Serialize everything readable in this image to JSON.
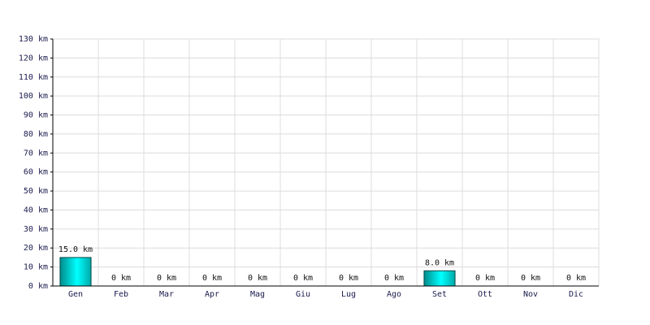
{
  "chart_data": {
    "type": "bar",
    "categories": [
      "Gen",
      "Feb",
      "Mar",
      "Apr",
      "Mag",
      "Giu",
      "Lug",
      "Ago",
      "Set",
      "Ott",
      "Nov",
      "Dic"
    ],
    "values": [
      15,
      0,
      0,
      0,
      0,
      0,
      0,
      0,
      8,
      0,
      0,
      0
    ],
    "value_labels": [
      "15.0 km",
      "0 km",
      "0 km",
      "0 km",
      "0 km",
      "0 km",
      "0 km",
      "0 km",
      "8.0 km",
      "0 km",
      "0 km",
      "0 km"
    ],
    "color": "#00d8d8",
    "ylim": [
      0,
      130
    ],
    "yticks": [
      {
        "value": 0,
        "label": "0 km"
      },
      {
        "value": 10,
        "label": "10 km"
      },
      {
        "value": 20,
        "label": "20 km"
      },
      {
        "value": 30,
        "label": "30 km"
      },
      {
        "value": 40,
        "label": "40 km"
      },
      {
        "value": 50,
        "label": "50 km"
      },
      {
        "value": 60,
        "label": "60 km"
      },
      {
        "value": 70,
        "label": "70 km"
      },
      {
        "value": 80,
        "label": "80 km"
      },
      {
        "value": 90,
        "label": "90 km"
      },
      {
        "value": 100,
        "label": "100 km"
      },
      {
        "value": 110,
        "label": "110 km"
      },
      {
        "value": 120,
        "label": "120 km"
      },
      {
        "value": 130,
        "label": "130 km"
      }
    ],
    "grid": true
  }
}
